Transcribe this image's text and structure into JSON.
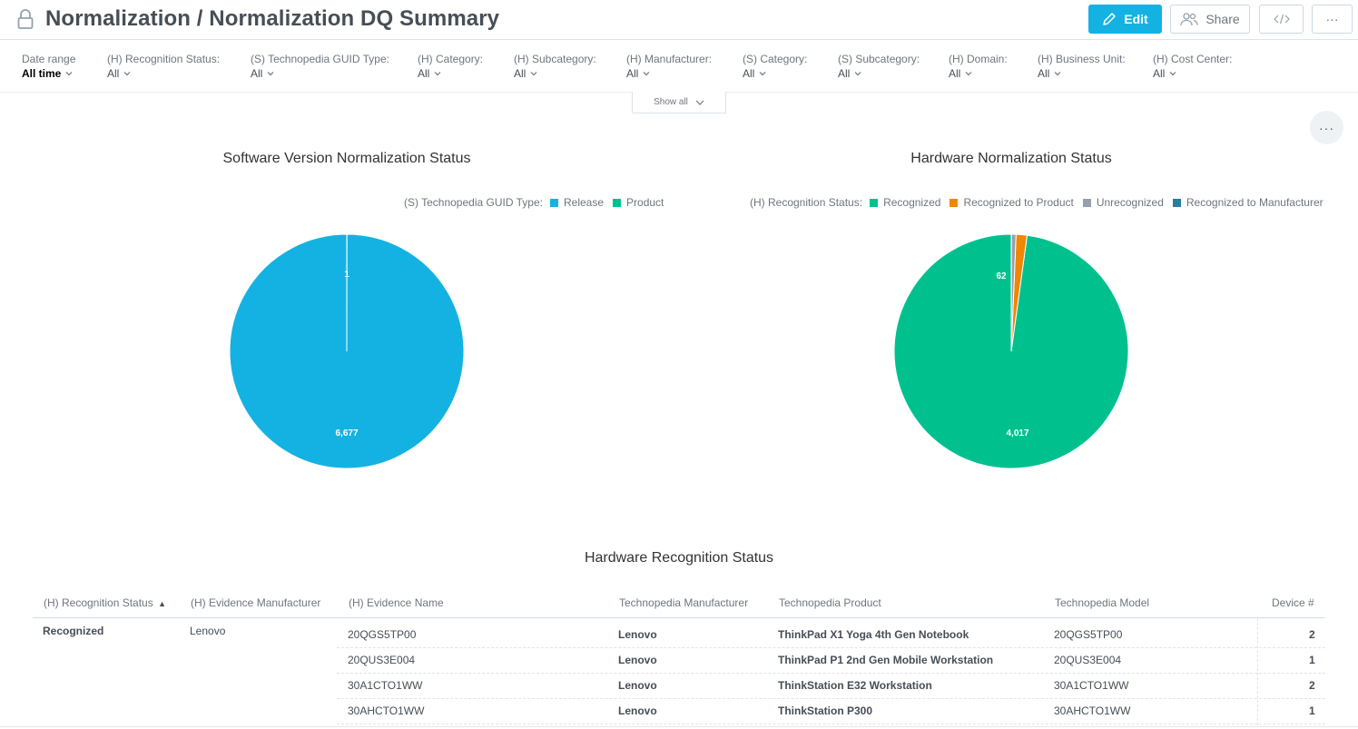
{
  "header": {
    "title": "Normalization / Normalization DQ Summary",
    "edit_label": "Edit",
    "share_label": "Share",
    "embed_icon": "code-icon",
    "more_label": "···"
  },
  "filters": [
    {
      "label": "Date range",
      "value": "All time"
    },
    {
      "label": "(H) Recognition Status:",
      "value": "All"
    },
    {
      "label": "(S) Technopedia GUID Type:",
      "value": "All"
    },
    {
      "label": "(H) Category:",
      "value": "All"
    },
    {
      "label": "(H) Subcategory:",
      "value": "All"
    },
    {
      "label": "(H) Manufacturer:",
      "value": "All"
    },
    {
      "label": "(S) Category:",
      "value": "All"
    },
    {
      "label": "(S) Subcategory:",
      "value": "All"
    },
    {
      "label": "(H) Domain:",
      "value": "All"
    },
    {
      "label": "(H) Business Unit:",
      "value": "All"
    },
    {
      "label": "(H) Cost Center:",
      "value": "All"
    }
  ],
  "show_all_label": "Show all",
  "dashboard_menu_label": "···",
  "colors": {
    "accent": "#14b2e2",
    "release": "#14b2e2",
    "product": "#00c18d",
    "recognized": "#00c18d",
    "recognized_to_product": "#f18600",
    "unrecognized": "#94a1ad",
    "recognized_to_manufacturer": "#2a7ba0"
  },
  "chart_data": [
    {
      "type": "pie",
      "title": "Software Version Normalization Status",
      "legend_title": "(S) Technopedia GUID Type:",
      "legend_position": "top-right",
      "categories": [
        "Release",
        "Product"
      ],
      "values": [
        6677,
        1
      ],
      "labels": [
        "6,677",
        "1"
      ]
    },
    {
      "type": "pie",
      "title": "Hardware Normalization Status",
      "legend_title": "(H) Recognition Status:",
      "legend_position": "top-right",
      "categories": [
        "Recognized",
        "Recognized to Product",
        "Unrecognized",
        "Recognized to Manufacturer"
      ],
      "values": [
        4017,
        62,
        26,
        1
      ],
      "labels": [
        "4,017",
        "62",
        "",
        ""
      ]
    }
  ],
  "table": {
    "title": "Hardware Recognition Status",
    "columns": [
      "(H) Recognition Status",
      "(H) Evidence Manufacturer",
      "(H) Evidence Name",
      "Technopedia Manufacturer",
      "Technopedia Product",
      "Technopedia Model",
      "Device #"
    ],
    "sort_indicator": "▲",
    "group_status": "Recognized",
    "group_manufacturer": "Lenovo",
    "rows": [
      {
        "name": "20QGS5TP00",
        "tp_manufacturer": "Lenovo",
        "tp_product": "ThinkPad X1 Yoga 4th Gen Notebook",
        "tp_model": "20QGS5TP00",
        "devices": "2"
      },
      {
        "name": "20QUS3E004",
        "tp_manufacturer": "Lenovo",
        "tp_product": "ThinkPad P1 2nd Gen Mobile Workstation",
        "tp_model": "20QUS3E004",
        "devices": "1"
      },
      {
        "name": "30A1CTO1WW",
        "tp_manufacturer": "Lenovo",
        "tp_product": "ThinkStation E32 Workstation",
        "tp_model": "30A1CTO1WW",
        "devices": "2"
      },
      {
        "name": "30AHCTO1WW",
        "tp_manufacturer": "Lenovo",
        "tp_product": "ThinkStation P300",
        "tp_model": "30AHCTO1WW",
        "devices": "1"
      }
    ]
  }
}
